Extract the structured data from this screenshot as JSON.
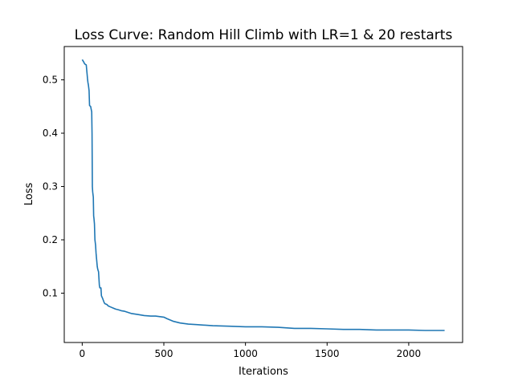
{
  "chart_data": {
    "type": "line",
    "title": "Loss Curve: Random Hill Climb with LR=1 & 20 restarts",
    "xlabel": "Iterations",
    "ylabel": "Loss",
    "xlim": [
      -110,
      2330
    ],
    "ylim": [
      0.0075,
      0.5625
    ],
    "xticks": [
      0,
      500,
      1000,
      1500,
      2000
    ],
    "yticks": [
      0.1,
      0.2,
      0.3,
      0.4,
      0.5
    ],
    "xtick_labels": [
      "0",
      "500",
      "1000",
      "1500",
      "2000"
    ],
    "ytick_labels": [
      "0.1",
      "0.2",
      "0.3",
      "0.4",
      "0.5"
    ],
    "grid": false,
    "legend": false,
    "series": [
      {
        "color": "#1f77b4",
        "x": [
          0,
          10,
          15,
          20,
          25,
          30,
          32,
          35,
          38,
          42,
          45,
          48,
          52,
          55,
          58,
          60,
          62,
          64,
          66,
          68,
          70,
          72,
          75,
          78,
          80,
          82,
          85,
          88,
          92,
          95,
          100,
          105,
          108,
          112,
          115,
          118,
          125,
          135,
          140,
          150,
          160,
          175,
          190,
          205,
          220,
          240,
          260,
          290,
          300,
          340,
          380,
          420,
          450,
          500,
          520,
          560,
          600,
          650,
          700,
          800,
          900,
          1000,
          1100,
          1200,
          1300,
          1400,
          1500,
          1600,
          1700,
          1800,
          1900,
          2000,
          2100,
          2220
        ],
        "y": [
          0.538,
          0.533,
          0.53,
          0.529,
          0.528,
          0.51,
          0.503,
          0.495,
          0.49,
          0.48,
          0.452,
          0.451,
          0.45,
          0.445,
          0.44,
          0.4,
          0.3,
          0.29,
          0.285,
          0.28,
          0.245,
          0.24,
          0.23,
          0.2,
          0.195,
          0.19,
          0.175,
          0.165,
          0.15,
          0.145,
          0.14,
          0.115,
          0.11,
          0.11,
          0.11,
          0.095,
          0.09,
          0.082,
          0.08,
          0.079,
          0.076,
          0.074,
          0.072,
          0.07,
          0.069,
          0.067,
          0.066,
          0.063,
          0.062,
          0.06,
          0.058,
          0.057,
          0.057,
          0.055,
          0.052,
          0.047,
          0.044,
          0.042,
          0.041,
          0.039,
          0.038,
          0.037,
          0.037,
          0.036,
          0.034,
          0.034,
          0.033,
          0.032,
          0.032,
          0.031,
          0.031,
          0.031,
          0.03,
          0.03
        ]
      }
    ]
  }
}
